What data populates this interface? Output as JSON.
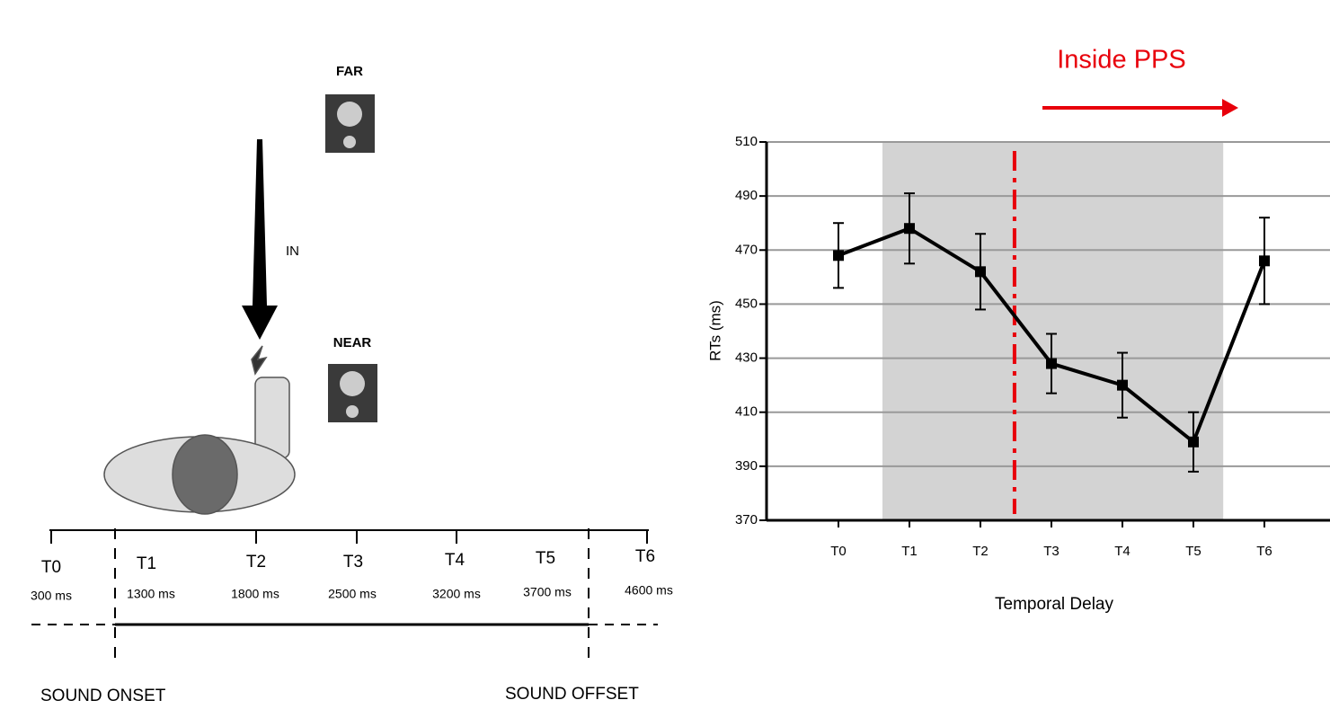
{
  "diagram": {
    "far": "FAR",
    "in": "IN",
    "near": "NEAR",
    "timeline": [
      {
        "label": "T0",
        "time": "300 ms"
      },
      {
        "label": "T1",
        "time": "1300 ms"
      },
      {
        "label": "T2",
        "time": "1800 ms"
      },
      {
        "label": "T3",
        "time": "2500 ms"
      },
      {
        "label": "T4",
        "time": "3200 ms"
      },
      {
        "label": "T5",
        "time": "3700 ms"
      },
      {
        "label": "T6",
        "time": "4600 ms"
      }
    ],
    "onset": "SOUND ONSET",
    "offset": "SOUND OFFSET"
  },
  "chart_data": {
    "type": "line",
    "annotation": "Inside PPS",
    "annotation_color": "#e8000b",
    "y_label": "RTs (ms)",
    "x_label": "Temporal Delay",
    "categories": [
      "T0",
      "T1",
      "T2",
      "T3",
      "T4",
      "T5",
      "T6"
    ],
    "values": [
      468,
      478,
      462,
      428,
      420,
      399,
      466
    ],
    "errors": [
      12,
      13,
      14,
      11,
      12,
      11,
      16
    ],
    "color": "#000000",
    "ylim": [
      370,
      510
    ],
    "yticks": [
      370,
      390,
      410,
      430,
      450,
      470,
      490,
      510
    ],
    "grid": true
  }
}
